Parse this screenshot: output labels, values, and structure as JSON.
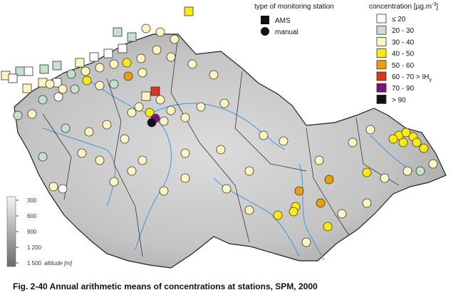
{
  "legend": {
    "station_type": {
      "title": "type of monitoring station",
      "items": [
        "AMS",
        "manual"
      ]
    },
    "concentration": {
      "title": "concentration [µg.m",
      "title_sup": "-3",
      "title_end": "]",
      "items": [
        {
          "label": "≤ 20",
          "color": "#ffffff"
        },
        {
          "label": "20 - 30",
          "color": "#c6e0cf"
        },
        {
          "label": "30 - 40",
          "color": "#fff6bf"
        },
        {
          "label": "40 - 50",
          "color": "#ffec00"
        },
        {
          "label": "50 - 60",
          "color": "#eea000"
        },
        {
          "label": "60 - 70 > IH",
          "sub": "y",
          "color": "#e0351a"
        },
        {
          "label": "70 - 90",
          "color": "#7c117c"
        },
        {
          "label": "> 90",
          "color": "#111111"
        }
      ]
    }
  },
  "altitude": {
    "labels": [
      "300",
      "600",
      "900",
      "1 200",
      "1 500"
    ],
    "title": "altitude [m]"
  },
  "caption": "Fig. 2-40  Annual arithmetic means of concentrations at stations, SPM, 2000"
}
